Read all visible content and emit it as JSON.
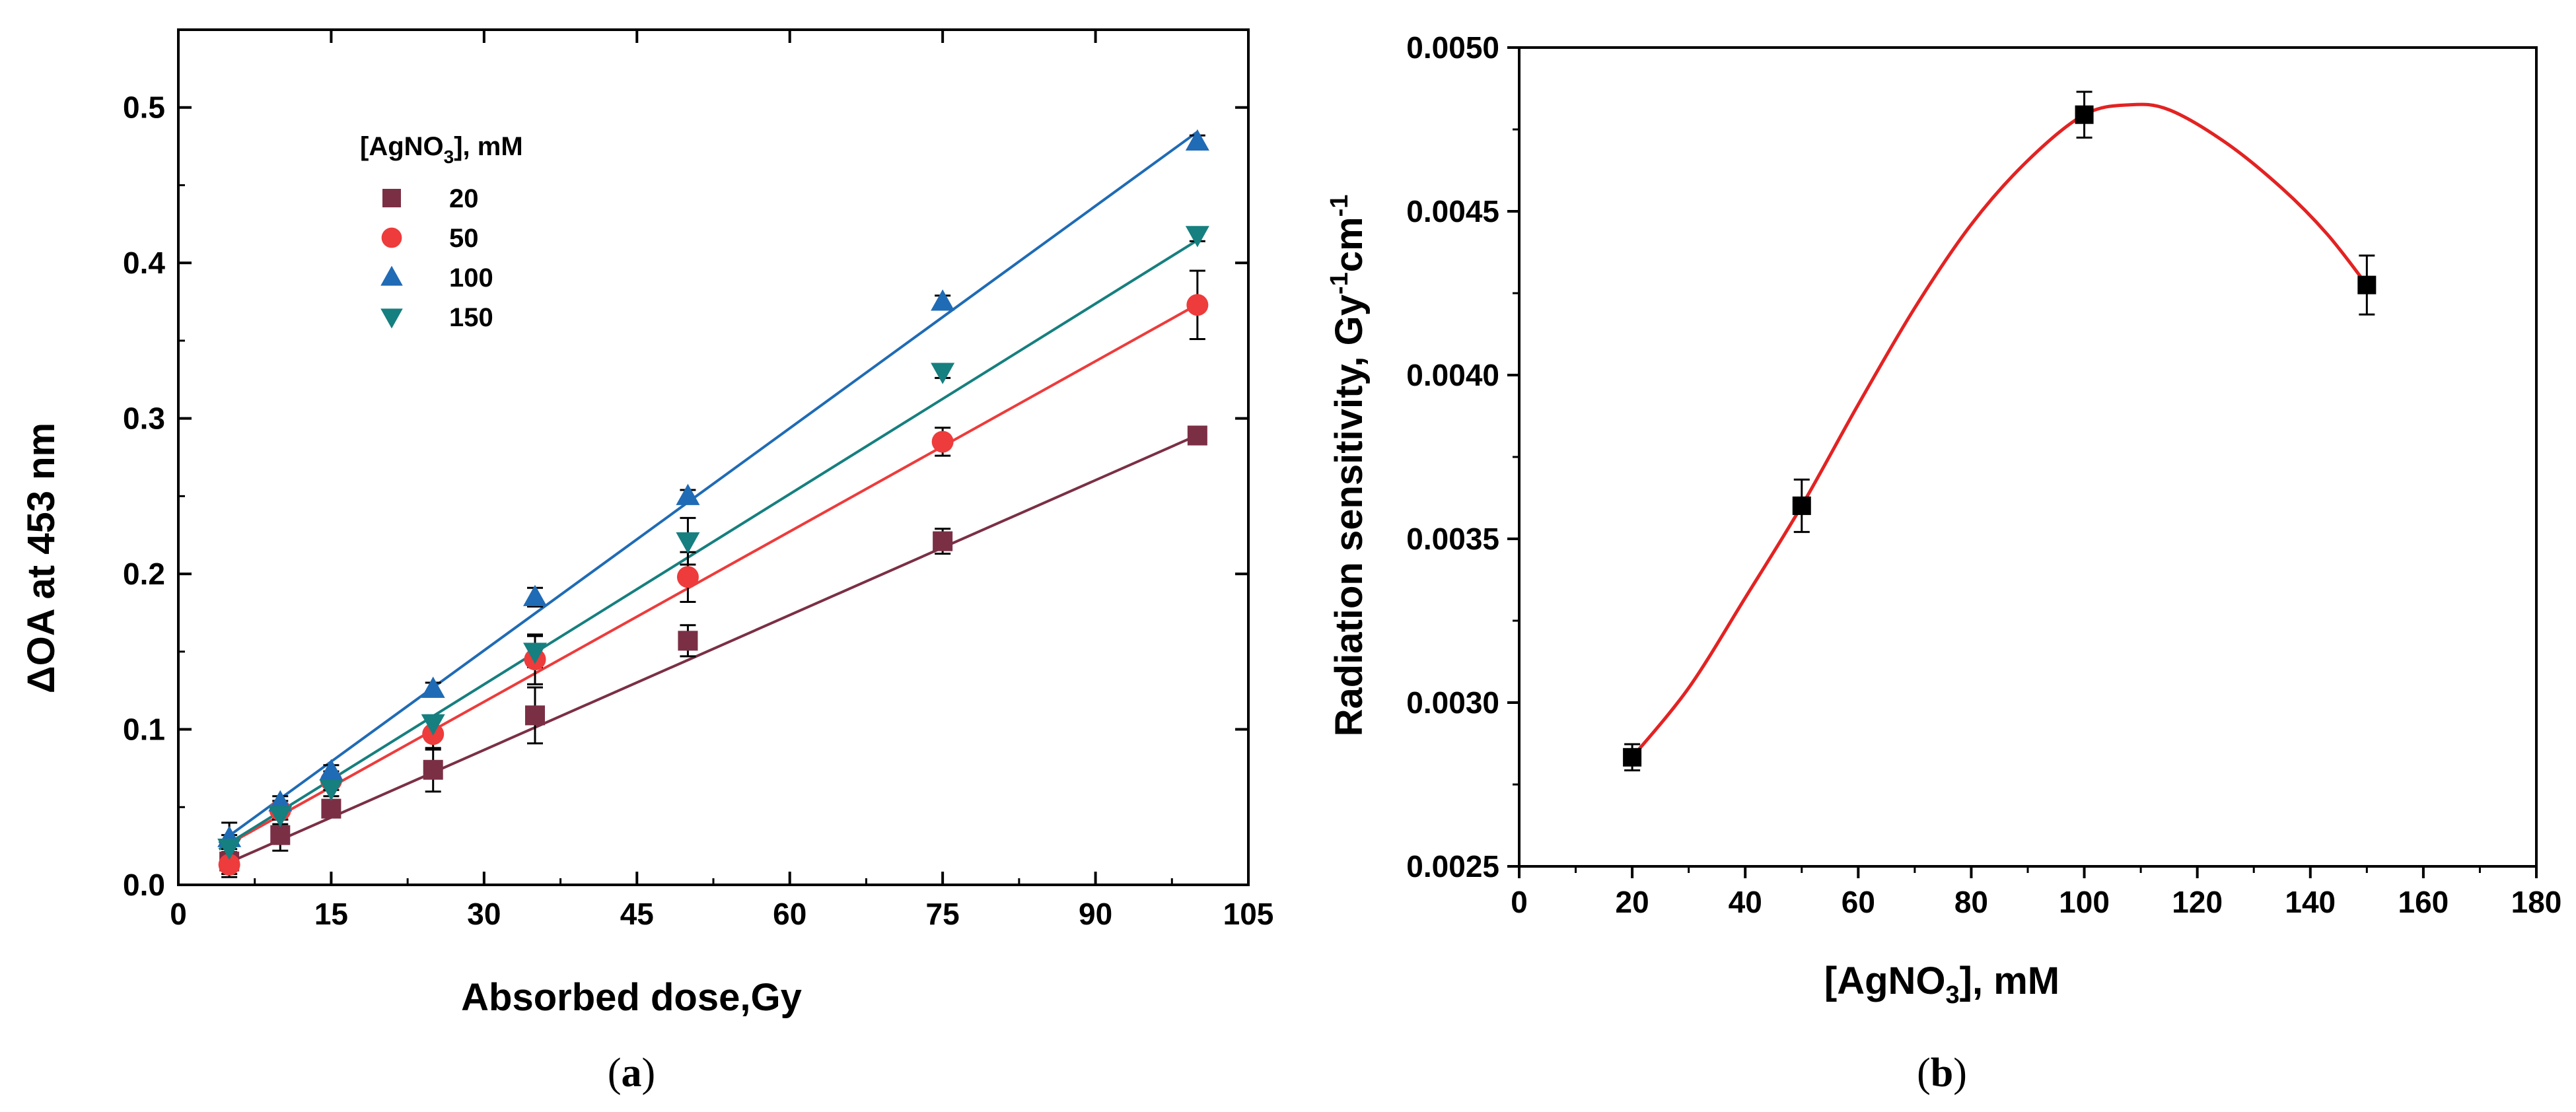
{
  "chart_data": [
    {
      "panel": "a",
      "caption_letter": "a",
      "type": "scatter",
      "title": "",
      "xlabel": "Absorbed dose,Gy",
      "ylabel": "ΔOA at 453 nm",
      "xlim": [
        0,
        105
      ],
      "ylim": [
        0,
        0.55
      ],
      "xticks": [
        0,
        15,
        30,
        45,
        60,
        75,
        90,
        105
      ],
      "yticks": [
        0.0,
        0.1,
        0.2,
        0.3,
        0.4,
        0.5
      ],
      "legend": {
        "title_main": "[AgNO",
        "title_sub": "3",
        "title_tail": "], mM",
        "position": "upper-left"
      },
      "x": [
        5,
        10,
        15,
        25,
        35,
        50,
        75,
        100
      ],
      "series": [
        {
          "name": "20",
          "marker": "square",
          "color": "#7b2f45",
          "values": [
            0.015,
            0.032,
            0.049,
            0.074,
            0.109,
            0.157,
            0.221,
            0.289
          ],
          "errors": [
            0.008,
            0.01,
            0.005,
            0.014,
            0.018,
            0.01,
            0.008,
            0.003
          ],
          "fit": {
            "slope": 0.002892,
            "intercept": 0.0,
            "x0": 4,
            "x1": 100
          }
        },
        {
          "name": "50",
          "marker": "circle",
          "color": "#ee3b3b",
          "values": [
            0.013,
            0.048,
            0.067,
            0.097,
            0.145,
            0.198,
            0.285,
            0.373
          ],
          "errors": [
            0.008,
            0.006,
            0.006,
            0.01,
            0.016,
            0.016,
            0.009,
            0.022
          ],
          "fit": {
            "slope": 0.003651,
            "intercept": 0.0082,
            "x0": 4,
            "x1": 100
          }
        },
        {
          "name": "100",
          "marker": "triangle-up",
          "color": "#1f6bb5",
          "values": [
            0.03,
            0.053,
            0.073,
            0.126,
            0.185,
            0.25,
            0.375,
            0.478
          ],
          "errors": [
            0.01,
            0.004,
            0.004,
            0.004,
            0.006,
            0.004,
            0.004,
            0.004
          ],
          "fit": {
            "slope": 0.004765,
            "intercept": 0.0078,
            "x0": 4,
            "x1": 100
          }
        },
        {
          "name": "150",
          "marker": "triangle-down",
          "color": "#167f7f",
          "values": [
            0.024,
            0.045,
            0.062,
            0.104,
            0.15,
            0.221,
            0.33,
            0.418
          ],
          "errors": [
            0.008,
            0.006,
            0.005,
            0.005,
            0.01,
            0.015,
            0.004,
            0.004
          ],
          "fit": {
            "slope": 0.004081,
            "intercept": 0.0065,
            "x0": 4,
            "x1": 100
          }
        }
      ]
    },
    {
      "panel": "b",
      "caption_letter": "b",
      "type": "scatter",
      "title": "",
      "xlabel_main": "[AgNO",
      "xlabel_sub": "3",
      "xlabel_tail": "], mM",
      "ylabel_parts": [
        "Radiation sensitivity, Gy",
        "-1",
        "cm",
        "-1"
      ],
      "xlim": [
        0,
        180
      ],
      "ylim": [
        0.0025,
        0.005
      ],
      "xticks": [
        0,
        20,
        40,
        60,
        80,
        100,
        120,
        140,
        160,
        180
      ],
      "yticks": [
        "0.0025",
        "0.0030",
        "0.0035",
        "0.0040",
        "0.0045",
        "0.0050"
      ],
      "curve_color": "#e32222",
      "marker_color": "#000000",
      "x": [
        20,
        50,
        100,
        150
      ],
      "values": [
        0.002833,
        0.003601,
        0.004795,
        0.004275
      ],
      "errors": [
        4e-05,
        8e-05,
        7e-05,
        9e-05
      ],
      "curve": [
        [
          20,
          0.002833
        ],
        [
          30,
          0.003045
        ],
        [
          40,
          0.00332
        ],
        [
          50,
          0.003601
        ],
        [
          60,
          0.00391
        ],
        [
          70,
          0.004205
        ],
        [
          80,
          0.00446
        ],
        [
          90,
          0.004655
        ],
        [
          100,
          0.004795
        ],
        [
          108,
          0.004825
        ],
        [
          115,
          0.00481
        ],
        [
          125,
          0.00471
        ],
        [
          135,
          0.00457
        ],
        [
          143,
          0.00443
        ],
        [
          150,
          0.004275
        ]
      ]
    }
  ]
}
